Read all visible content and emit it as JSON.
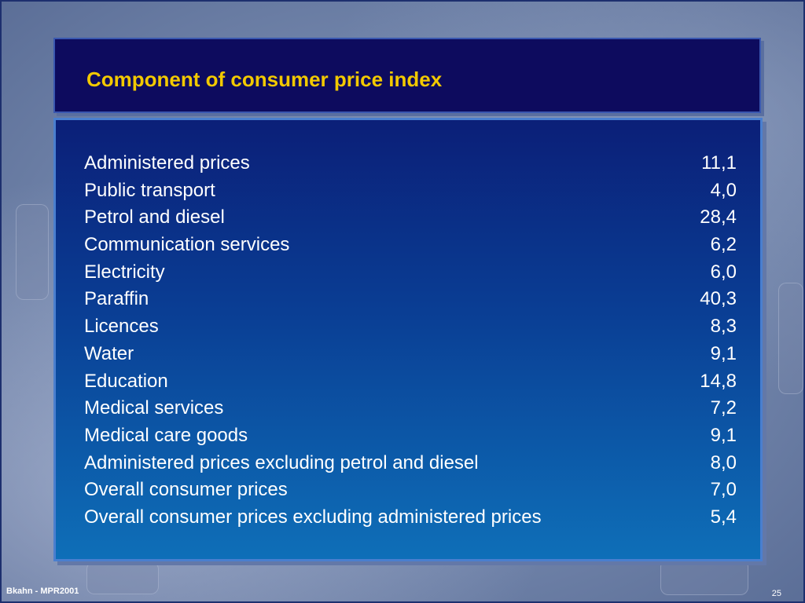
{
  "slide": {
    "title": "Component of consumer price index",
    "footer_left": "Bkahn - MPR2001",
    "page_number": "25"
  },
  "table": {
    "rows": [
      {
        "label": "Administered prices",
        "value": "11,1"
      },
      {
        "label": "Public transport",
        "value": "4,0"
      },
      {
        "label": "Petrol and diesel",
        "value": "28,4"
      },
      {
        "label": "Communication services",
        "value": "6,2"
      },
      {
        "label": "Electricity",
        "value": "6,0"
      },
      {
        "label": "Paraffin",
        "value": "40,3"
      },
      {
        "label": "Licences",
        "value": "8,3"
      },
      {
        "label": "Water",
        "value": "9,1"
      },
      {
        "label": "Education",
        "value": "14,8"
      },
      {
        "label": "Medical services",
        "value": "7,2"
      },
      {
        "label": "Medical care goods",
        "value": "9,1"
      },
      {
        "label": "Administered prices excluding petrol and diesel",
        "value": "8,0"
      },
      {
        "label": "Overall consumer prices",
        "value": "7,0"
      },
      {
        "label": "Overall consumer prices excluding administered prices",
        "value": "5,4"
      }
    ]
  },
  "colors": {
    "title_text": "#f2c900",
    "title_bg": "#0d0b5e",
    "body_text": "#ffffff"
  }
}
